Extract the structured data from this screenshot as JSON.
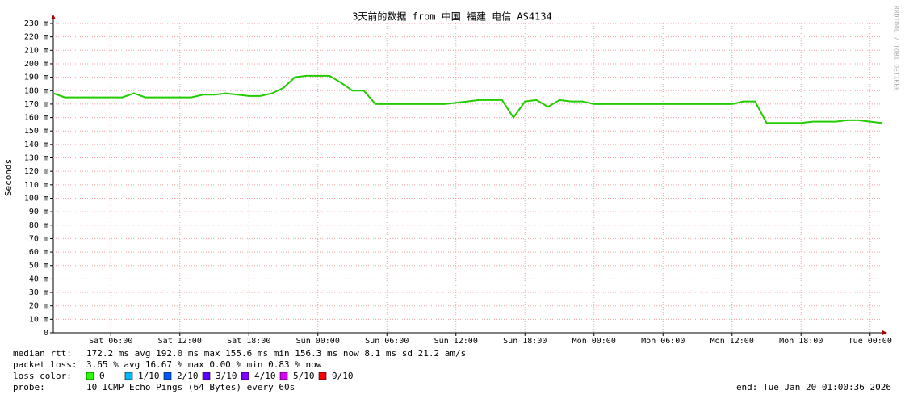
{
  "chart_data": {
    "type": "line",
    "title": "3天前的数据 from 中国 福建 电信 AS4134",
    "y_label": "Seconds",
    "watermark": "RRDTOOL / TOBI OETIKER",
    "xlim": [
      "Sat 01:00",
      "Tue 01:00"
    ],
    "xticks": [
      "Sat 06:00",
      "Sat 12:00",
      "Sat 18:00",
      "Sun 00:00",
      "Sun 06:00",
      "Sun 12:00",
      "Sun 18:00",
      "Mon 00:00",
      "Mon 06:00",
      "Mon 12:00",
      "Mon 18:00",
      "Tue 00:00"
    ],
    "ylim": [
      0,
      230
    ],
    "yticks": [
      0,
      {
        "value": 10,
        "label": "10 m"
      },
      {
        "value": 20,
        "label": "20 m"
      },
      {
        "value": 30,
        "label": "30 m"
      },
      {
        "value": 40,
        "label": "40 m"
      },
      {
        "value": 50,
        "label": "50 m"
      },
      {
        "value": 60,
        "label": "60 m"
      },
      {
        "value": 70,
        "label": "70 m"
      },
      {
        "value": 80,
        "label": "80 m"
      },
      {
        "value": 90,
        "label": "90 m"
      },
      {
        "value": 100,
        "label": "100 m"
      },
      {
        "value": 110,
        "label": "110 m"
      },
      {
        "value": 120,
        "label": "120 m"
      },
      {
        "value": 130,
        "label": "130 m"
      },
      {
        "value": 140,
        "label": "140 m"
      },
      {
        "value": 150,
        "label": "150 m"
      },
      {
        "value": 160,
        "label": "160 m"
      },
      {
        "value": 170,
        "label": "170 m"
      },
      {
        "value": 180,
        "label": "180 m"
      },
      {
        "value": 190,
        "label": "190 m"
      },
      {
        "value": 200,
        "label": "200 m"
      },
      {
        "value": 210,
        "label": "210 m"
      },
      {
        "value": 220,
        "label": "220 m"
      },
      {
        "value": 230,
        "label": "230 m"
      }
    ],
    "grid": true,
    "x": [
      "Sat 01:00",
      "Sat 02:00",
      "Sat 03:00",
      "Sat 04:00",
      "Sat 05:00",
      "Sat 06:00",
      "Sat 07:00",
      "Sat 08:00",
      "Sat 09:00",
      "Sat 10:00",
      "Sat 11:00",
      "Sat 12:00",
      "Sat 13:00",
      "Sat 14:00",
      "Sat 15:00",
      "Sat 16:00",
      "Sat 17:00",
      "Sat 18:00",
      "Sat 19:00",
      "Sat 20:00",
      "Sat 21:00",
      "Sat 22:00",
      "Sat 23:00",
      "Sun 00:00",
      "Sun 01:00",
      "Sun 02:00",
      "Sun 03:00",
      "Sun 04:00",
      "Sun 05:00",
      "Sun 06:00",
      "Sun 07:00",
      "Sun 08:00",
      "Sun 09:00",
      "Sun 10:00",
      "Sun 11:00",
      "Sun 12:00",
      "Sun 13:00",
      "Sun 14:00",
      "Sun 15:00",
      "Sun 16:00",
      "Sun 17:00",
      "Sun 18:00",
      "Sun 19:00",
      "Sun 20:00",
      "Sun 21:00",
      "Sun 22:00",
      "Sun 23:00",
      "Mon 00:00",
      "Mon 01:00",
      "Mon 02:00",
      "Mon 03:00",
      "Mon 04:00",
      "Mon 05:00",
      "Mon 06:00",
      "Mon 07:00",
      "Mon 08:00",
      "Mon 09:00",
      "Mon 10:00",
      "Mon 11:00",
      "Mon 12:00",
      "Mon 13:00",
      "Mon 14:00",
      "Mon 15:00",
      "Mon 16:00",
      "Mon 17:00",
      "Mon 18:00",
      "Mon 19:00",
      "Mon 20:00",
      "Mon 21:00",
      "Mon 22:00",
      "Mon 23:00",
      "Tue 00:00",
      "Tue 01:00"
    ],
    "series": [
      {
        "color": "#22cc00",
        "values": [
          178,
          175,
          175,
          175,
          175,
          175,
          175,
          178,
          175,
          175,
          175,
          175,
          175,
          177,
          177,
          178,
          177,
          176,
          176,
          178,
          182,
          190,
          191,
          191,
          191,
          186,
          180,
          180,
          170,
          170,
          170,
          170,
          170,
          170,
          170,
          171,
          172,
          173,
          173,
          173,
          160,
          172,
          173,
          168,
          173,
          172,
          172,
          170,
          170,
          170,
          170,
          170,
          170,
          170,
          170,
          170,
          170,
          170,
          170,
          170,
          172,
          172,
          156,
          156,
          156,
          156,
          157,
          157,
          157,
          158,
          158,
          157,
          156
        ]
      }
    ],
    "stats": [
      {
        "label": "median rtt:",
        "text": "172.2 ms avg   192.0 ms max   155.6 ms min   156.3 ms now   8.1 ms sd   21.2   am/s"
      },
      {
        "label": "packet loss:",
        "text": "3.65 % avg  16.67 % max   0.00 % min   0.83 % now"
      }
    ],
    "legend": {
      "title": "loss color:",
      "items": [
        {
          "name": "0",
          "color": "#26ff00"
        },
        {
          "name": "1/10",
          "color": "#00b8ff"
        },
        {
          "name": "2/10",
          "color": "#0059ff"
        },
        {
          "name": "3/10",
          "color": "#5e00ff"
        },
        {
          "name": "4/10",
          "color": "#7e00ff"
        },
        {
          "name": "5/10",
          "color": "#dd00ff"
        },
        {
          "name": "9/10",
          "color": "#ff0000"
        }
      ]
    },
    "probe": {
      "label": "probe:",
      "text": "10 ICMP Echo Pings (64 Bytes) every 60s",
      "end": "end: Tue Jan 20 01:00:36 2026"
    }
  }
}
